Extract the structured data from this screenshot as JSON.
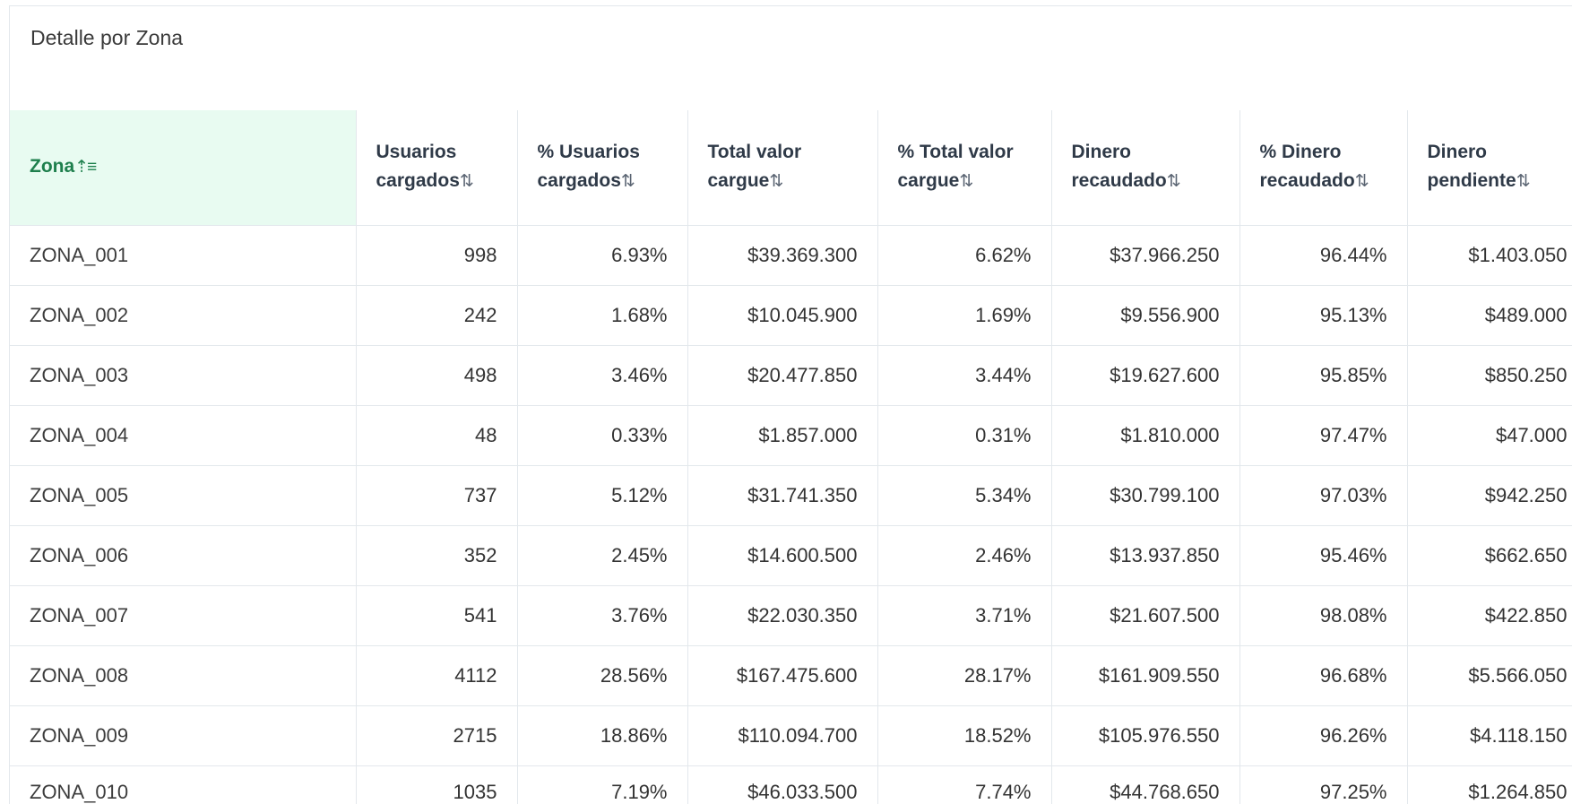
{
  "panel": {
    "title": "Detalle por Zona"
  },
  "icons": {
    "sort_ascending": "sort-ascending-icon",
    "sort_both": "sort-both-icon"
  },
  "colors": {
    "sorted_header_bg": "#e8fbf1",
    "sorted_header_text": "#1e7f4d",
    "border": "#e3e8ec"
  },
  "table": {
    "columns": [
      {
        "label": "Zona",
        "sort_glyph": "⇡≡",
        "sorted": true
      },
      {
        "label": "Usuarios cargados",
        "sort_glyph": "⇅",
        "sorted": false
      },
      {
        "label": "% Usuarios cargados",
        "sort_glyph": "⇅",
        "sorted": false
      },
      {
        "label": "Total valor cargue",
        "sort_glyph": "⇅",
        "sorted": false
      },
      {
        "label": "% Total valor cargue",
        "sort_glyph": "⇅",
        "sorted": false
      },
      {
        "label": "Dinero recaudado",
        "sort_glyph": "⇅",
        "sorted": false
      },
      {
        "label": "% Dinero recaudado",
        "sort_glyph": "⇅",
        "sorted": false
      },
      {
        "label": "Dinero pendiente",
        "sort_glyph": "⇅",
        "sorted": false
      }
    ],
    "rows": [
      [
        "ZONA_001",
        "998",
        "6.93%",
        "$39.369.300",
        "6.62%",
        "$37.966.250",
        "96.44%",
        "$1.403.050"
      ],
      [
        "ZONA_002",
        "242",
        "1.68%",
        "$10.045.900",
        "1.69%",
        "$9.556.900",
        "95.13%",
        "$489.000"
      ],
      [
        "ZONA_003",
        "498",
        "3.46%",
        "$20.477.850",
        "3.44%",
        "$19.627.600",
        "95.85%",
        "$850.250"
      ],
      [
        "ZONA_004",
        "48",
        "0.33%",
        "$1.857.000",
        "0.31%",
        "$1.810.000",
        "97.47%",
        "$47.000"
      ],
      [
        "ZONA_005",
        "737",
        "5.12%",
        "$31.741.350",
        "5.34%",
        "$30.799.100",
        "97.03%",
        "$942.250"
      ],
      [
        "ZONA_006",
        "352",
        "2.45%",
        "$14.600.500",
        "2.46%",
        "$13.937.850",
        "95.46%",
        "$662.650"
      ],
      [
        "ZONA_007",
        "541",
        "3.76%",
        "$22.030.350",
        "3.71%",
        "$21.607.500",
        "98.08%",
        "$422.850"
      ],
      [
        "ZONA_008",
        "4112",
        "28.56%",
        "$167.475.600",
        "28.17%",
        "$161.909.550",
        "96.68%",
        "$5.566.050"
      ],
      [
        "ZONA_009",
        "2715",
        "18.86%",
        "$110.094.700",
        "18.52%",
        "$105.976.550",
        "96.26%",
        "$4.118.150"
      ],
      [
        "ZONA_010",
        "1035",
        "7.19%",
        "$46.033.500",
        "7.74%",
        "$44.768.650",
        "97.25%",
        "$1.264.850"
      ]
    ]
  }
}
